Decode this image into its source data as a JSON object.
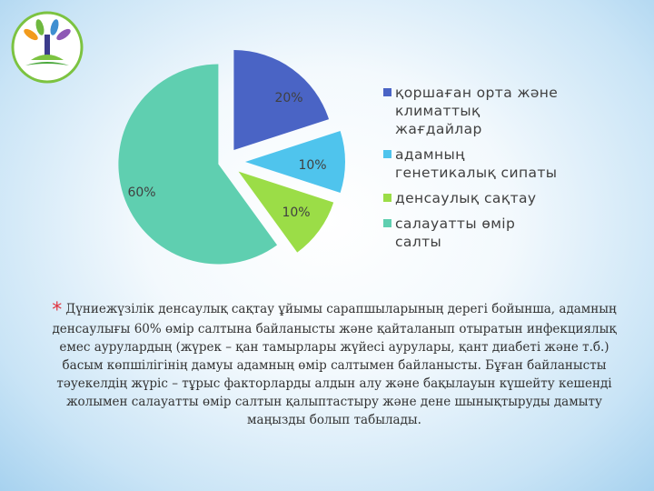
{
  "chart_data": {
    "type": "pie",
    "categories": [
      "қоршаған орта және климаттық жағдайлар",
      "адамның генетикалық сипаты",
      "денсаулық сақтау",
      "салауатты өмір салты"
    ],
    "values": [
      20,
      10,
      10,
      60
    ],
    "labels": [
      "20%",
      "10%",
      "10%",
      "60%"
    ],
    "colors": [
      "#4a64c5",
      "#4fc4ed",
      "#9bdd47",
      "#5fcfb0"
    ],
    "exploded": true,
    "legend": "right"
  },
  "caption": {
    "bullet": "*",
    "text": "Дүниежүзілік денсаулық сақтау ұйымы сарапшыларының дерегі бойынша, адамның денсаулығы 60%  өмір салтына байланысты  және қайталанып отыратын инфекциялық емес аурулардың (жүрек – қан тамырлары жүйесі аурулары, қант диабеті және т.б.) басым көпшілігінің дамуы адамның өмір салтымен байланысты. Бұған байланысты тәуекелдің жүріс – тұрыс факторларды алдын алу және бақылауын күшейту кешенді жолымен салауатты өмір салтын қалыптастыру және дене шынықтыруды дамыту маңызды болып табылады."
  }
}
